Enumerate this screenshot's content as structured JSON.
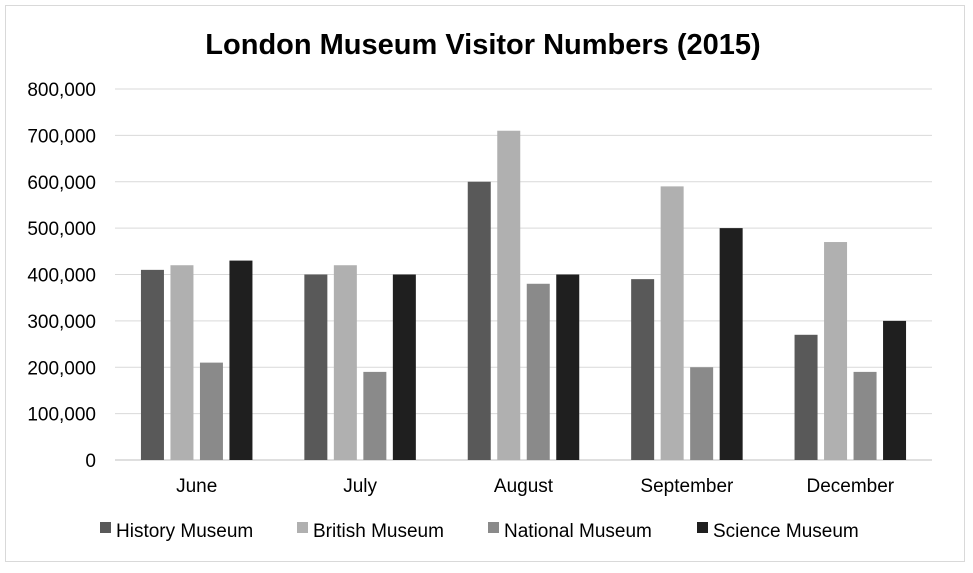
{
  "chart_data": {
    "type": "bar",
    "title": "London Museum Visitor Numbers (2015)",
    "categories": [
      "June",
      "July",
      "August",
      "September",
      "December"
    ],
    "series": [
      {
        "name": "History Museum",
        "color": "#595959",
        "values": [
          410000,
          400000,
          600000,
          390000,
          270000
        ]
      },
      {
        "name": "British Museum",
        "color": "#b0b0b0",
        "values": [
          420000,
          420000,
          710000,
          590000,
          470000
        ]
      },
      {
        "name": "National Museum",
        "color": "#8a8a8a",
        "values": [
          210000,
          190000,
          380000,
          200000,
          190000
        ]
      },
      {
        "name": "Science Museum",
        "color": "#1f1f1f",
        "values": [
          430000,
          400000,
          400000,
          500000,
          300000
        ]
      }
    ],
    "yticks": [
      "0",
      "100,000",
      "200,000",
      "300,000",
      "400,000",
      "500,000",
      "600,000",
      "700,000",
      "800,000"
    ],
    "ylim": [
      0,
      800000
    ],
    "xlabel": "",
    "ylabel": "",
    "grid": true,
    "legend": "bottom"
  }
}
